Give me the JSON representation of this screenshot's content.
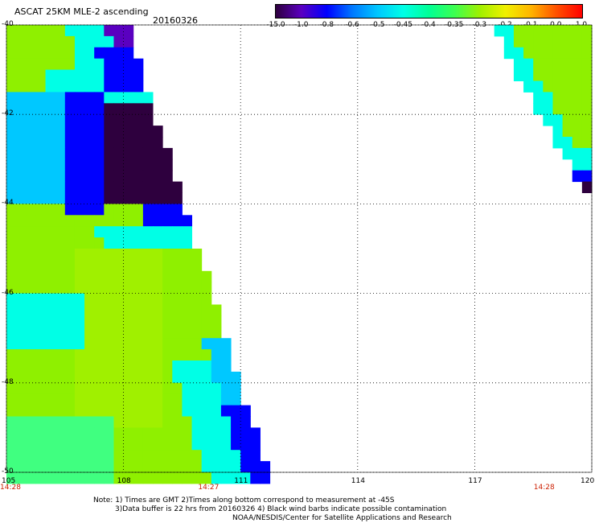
{
  "header": {
    "title": "ASCAT 25KM MLE-2 ascending",
    "date": "20160326"
  },
  "colorbar": {
    "labels": [
      "-15.0",
      "-1.0",
      "-0.8",
      "-0.6",
      "-0.5",
      "-0.45",
      "-0.4",
      "-0.35",
      "-0.3",
      "-0.2",
      "-0.1",
      "0.0",
      "1.0"
    ],
    "colors": [
      "#2e003e",
      "#5a00c0",
      "#0000ff",
      "#0078ff",
      "#00c8ff",
      "#00ffe6",
      "#00ff96",
      "#3cff50",
      "#a0f000",
      "#f0f000",
      "#ffb400",
      "#ff5000",
      "#ff0000"
    ]
  },
  "map": {
    "lon_range": [
      105,
      120
    ],
    "lat_range": [
      -50,
      -40
    ],
    "lon_ticks": [
      "105",
      "108",
      "111",
      "114",
      "117",
      "120"
    ],
    "lat_ticks": [
      "-40",
      "-42",
      "-44",
      "-46",
      "-48",
      "-50"
    ],
    "grid": true,
    "colors": {
      "green": "#8ff000",
      "lime": "#a0f000",
      "yellowgreen": "#b4f000",
      "mint": "#40ff80",
      "cyan": "#00ffe6",
      "sky": "#00c8ff",
      "blue": "#0000ff",
      "purple": "#5a00c0",
      "dark": "#2e003e"
    }
  },
  "times": [
    {
      "text": "14:28",
      "lon": 105
    },
    {
      "text": "14:27",
      "lon": 110.2
    },
    {
      "text": "14:28",
      "lon": 118.8
    }
  ],
  "notes": [
    "Note: 1) Times are GMT 2)Times along bottom correspond to measurement at -45S",
    "3)Data buffer is 22 hrs from 20160326 4) Black wind barbs indicate possible contamination",
    "NOAA/NESDIS/Center for Satellite Applications and Research"
  ]
}
